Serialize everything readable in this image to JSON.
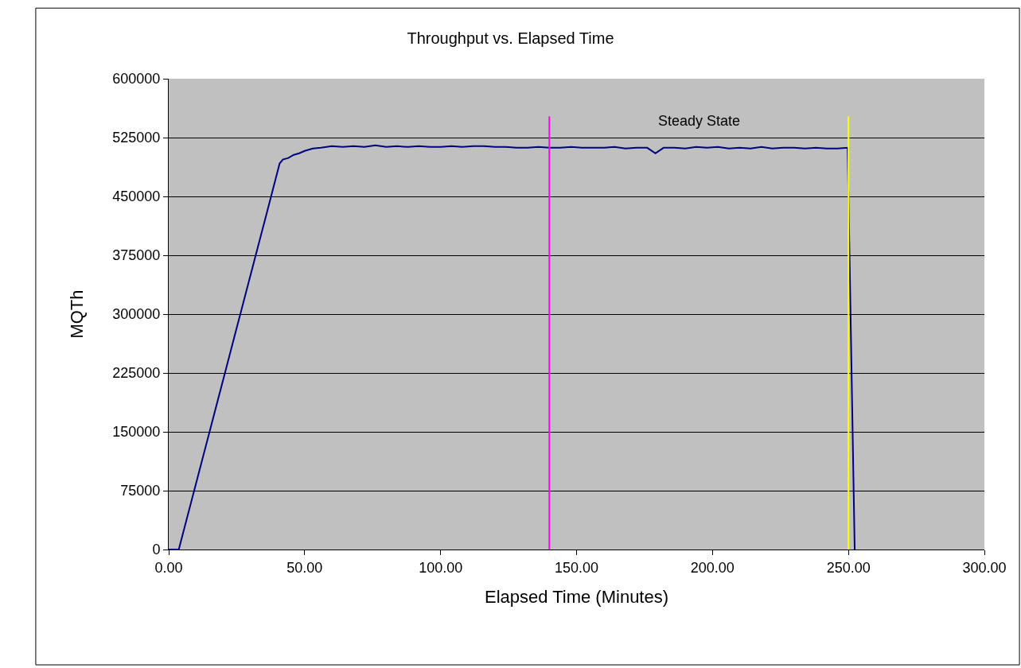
{
  "chart_data": {
    "type": "line",
    "title": "Throughput vs. Elapsed Time",
    "xlabel": "Elapsed Time (Minutes)",
    "ylabel": "MQTh",
    "x": [
      0,
      3.7,
      8,
      12,
      16,
      20,
      24,
      28,
      32,
      36,
      39,
      40.8,
      42,
      44,
      46,
      48,
      50,
      53,
      56,
      60,
      64,
      68,
      72,
      76,
      80,
      84,
      88,
      92,
      96,
      100,
      104,
      108,
      112,
      116,
      120,
      124,
      128,
      132,
      136,
      140,
      144,
      148,
      152,
      156,
      160,
      164,
      168,
      172,
      176,
      179,
      182,
      186,
      190,
      194,
      198,
      202,
      206,
      210,
      214,
      218,
      222,
      226,
      230,
      234,
      238,
      242,
      246,
      249.7,
      252.3
    ],
    "series": [
      {
        "color": "#000080",
        "values": [
          0,
          0,
          57000,
          110000,
          163000,
          216000,
          269000,
          322000,
          375000,
          428000,
          468000,
          492000,
          497000,
          499000,
          503000,
          505000,
          508000,
          511000,
          512000,
          514000,
          513000,
          514000,
          513000,
          515000,
          513000,
          514000,
          513000,
          514000,
          513000,
          513000,
          514000,
          513000,
          514000,
          514000,
          513000,
          513000,
          512000,
          512000,
          513000,
          512000,
          512000,
          513000,
          512000,
          512000,
          512000,
          513000,
          511000,
          512000,
          512000,
          505000,
          512000,
          512000,
          511000,
          513000,
          512000,
          513000,
          511000,
          512000,
          511000,
          513000,
          511000,
          512000,
          512000,
          511000,
          512000,
          511000,
          511000,
          512000,
          0
        ]
      }
    ],
    "xlim": [
      0,
      300
    ],
    "xticks": [
      {
        "value": 0,
        "label": "0.00"
      },
      {
        "value": 50,
        "label": "50.00"
      },
      {
        "value": 100,
        "label": "100.00"
      },
      {
        "value": 150,
        "label": "150.00"
      },
      {
        "value": 200,
        "label": "200.00"
      },
      {
        "value": 250,
        "label": "250.00"
      },
      {
        "value": 300,
        "label": "300.00"
      }
    ],
    "ylim": [
      0,
      600000
    ],
    "yticks": [
      0,
      75000,
      150000,
      225000,
      300000,
      375000,
      450000,
      525000,
      600000
    ],
    "grid": "y",
    "marker": "none",
    "line_style": "solid",
    "ref_lines": [
      {
        "axis": "x",
        "value": 140,
        "color": "#ff00ff"
      },
      {
        "axis": "x",
        "value": 250,
        "color": "#ffff00"
      }
    ],
    "annotations": [
      "Steady State"
    ]
  }
}
